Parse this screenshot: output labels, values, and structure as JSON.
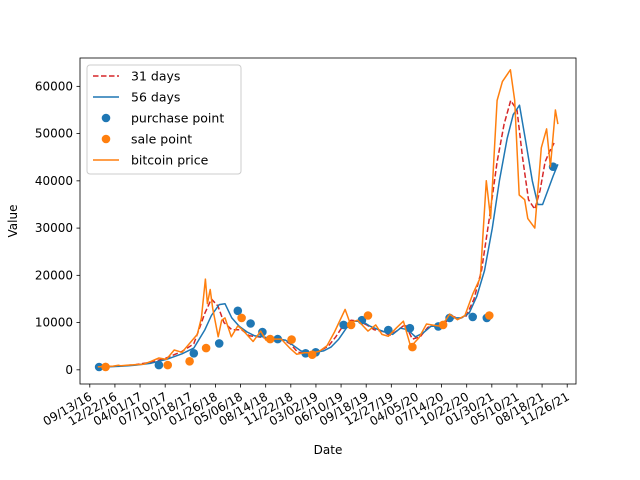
{
  "chart_data": {
    "type": "line",
    "xlabel": "Date",
    "ylabel": "Value",
    "x_axis": {
      "type": "date",
      "range": [
        "2016-08-05",
        "2021-12-31"
      ],
      "ticks": [
        "2016-09-13",
        "2016-12-22",
        "2017-04-01",
        "2017-07-10",
        "2017-10-18",
        "2018-01-26",
        "2018-05-06",
        "2018-08-14",
        "2018-11-22",
        "2019-03-02",
        "2019-06-10",
        "2019-09-18",
        "2019-12-27",
        "2020-04-05",
        "2020-07-14",
        "2020-10-22",
        "2021-01-30",
        "2021-05-10",
        "2021-08-18",
        "2021-11-26"
      ],
      "tick_labels": [
        "09/13/16",
        "12/22/16",
        "04/01/17",
        "07/10/17",
        "10/18/17",
        "01/26/18",
        "05/06/18",
        "08/14/18",
        "11/22/18",
        "03/02/19",
        "06/10/19",
        "09/18/19",
        "12/27/19",
        "04/05/20",
        "07/14/20",
        "10/22/20",
        "01/30/21",
        "05/10/21",
        "08/18/21",
        "11/26/21"
      ]
    },
    "y_axis": {
      "range": [
        -3000,
        66000
      ],
      "ticks": [
        0,
        10000,
        20000,
        30000,
        40000,
        50000,
        60000
      ],
      "tick_labels": [
        "0",
        "10000",
        "20000",
        "30000",
        "40000",
        "50000",
        "60000"
      ]
    },
    "grid": false,
    "legend_position": "top-left",
    "series": [
      {
        "name": "31 days",
        "kind": "line",
        "style": "dashed",
        "color": "#d62728",
        "points": [
          [
            "2016-11-01",
            650
          ],
          [
            "2017-01-15",
            800
          ],
          [
            "2017-03-15",
            1100
          ],
          [
            "2017-05-15",
            1600
          ],
          [
            "2017-07-15",
            2500
          ],
          [
            "2017-09-15",
            3900
          ],
          [
            "2017-11-01",
            5500
          ],
          [
            "2017-12-15",
            12000
          ],
          [
            "2018-01-10",
            15000
          ],
          [
            "2018-02-05",
            13500
          ],
          [
            "2018-03-01",
            10000
          ],
          [
            "2018-04-01",
            8500
          ],
          [
            "2018-05-10",
            8500
          ],
          [
            "2018-06-10",
            7200
          ],
          [
            "2018-07-15",
            7000
          ],
          [
            "2018-08-15",
            6700
          ],
          [
            "2018-09-15",
            6600
          ],
          [
            "2018-10-15",
            6500
          ],
          [
            "2018-11-20",
            5500
          ],
          [
            "2018-12-20",
            3700
          ],
          [
            "2019-01-20",
            3600
          ],
          [
            "2019-02-20",
            3800
          ],
          [
            "2019-03-20",
            4100
          ],
          [
            "2019-04-20",
            5000
          ],
          [
            "2019-05-20",
            7000
          ],
          [
            "2019-06-20",
            9500
          ],
          [
            "2019-07-20",
            10500
          ],
          [
            "2019-08-20",
            10300
          ],
          [
            "2019-09-20",
            9500
          ],
          [
            "2019-10-20",
            8500
          ],
          [
            "2019-11-20",
            8200
          ],
          [
            "2019-12-20",
            7300
          ],
          [
            "2020-01-20",
            8300
          ],
          [
            "2020-02-20",
            9600
          ],
          [
            "2020-03-20",
            6500
          ],
          [
            "2020-04-20",
            7000
          ],
          [
            "2020-05-20",
            9000
          ],
          [
            "2020-06-20",
            9400
          ],
          [
            "2020-07-20",
            9300
          ],
          [
            "2020-08-20",
            11500
          ],
          [
            "2020-09-20",
            10800
          ],
          [
            "2020-10-20",
            11400
          ],
          [
            "2020-11-20",
            15000
          ],
          [
            "2020-12-20",
            21000
          ],
          [
            "2021-01-20",
            32000
          ],
          [
            "2021-02-20",
            44000
          ],
          [
            "2021-03-20",
            52000
          ],
          [
            "2021-04-15",
            57000
          ],
          [
            "2021-05-10",
            55000
          ],
          [
            "2021-06-01",
            45000
          ],
          [
            "2021-06-25",
            36000
          ],
          [
            "2021-07-20",
            34000
          ],
          [
            "2021-08-10",
            38000
          ],
          [
            "2021-08-30",
            44000
          ],
          [
            "2021-09-15",
            46000
          ],
          [
            "2021-10-05",
            48000
          ]
        ]
      },
      {
        "name": "56 days",
        "kind": "line",
        "style": "solid",
        "color": "#1f77b4",
        "points": [
          [
            "2016-11-01",
            600
          ],
          [
            "2017-01-15",
            750
          ],
          [
            "2017-03-15",
            1000
          ],
          [
            "2017-05-15",
            1400
          ],
          [
            "2017-07-15",
            2200
          ],
          [
            "2017-09-15",
            3400
          ],
          [
            "2017-11-01",
            4600
          ],
          [
            "2017-12-15",
            8500
          ],
          [
            "2018-01-10",
            11500
          ],
          [
            "2018-02-10",
            13800
          ],
          [
            "2018-03-05",
            14000
          ],
          [
            "2018-04-01",
            11000
          ],
          [
            "2018-05-01",
            9200
          ],
          [
            "2018-06-01",
            8000
          ],
          [
            "2018-07-01",
            7200
          ],
          [
            "2018-08-01",
            7000
          ],
          [
            "2018-09-01",
            6700
          ],
          [
            "2018-10-01",
            6500
          ],
          [
            "2018-11-01",
            6300
          ],
          [
            "2018-12-01",
            5200
          ],
          [
            "2019-01-01",
            4000
          ],
          [
            "2019-02-01",
            3600
          ],
          [
            "2019-03-01",
            3700
          ],
          [
            "2019-04-01",
            4000
          ],
          [
            "2019-05-01",
            4800
          ],
          [
            "2019-06-01",
            6500
          ],
          [
            "2019-07-01",
            8800
          ],
          [
            "2019-08-01",
            10300
          ],
          [
            "2019-09-01",
            10300
          ],
          [
            "2019-10-01",
            9300
          ],
          [
            "2019-11-01",
            8600
          ],
          [
            "2019-12-01",
            8000
          ],
          [
            "2020-01-01",
            7500
          ],
          [
            "2020-02-01",
            8800
          ],
          [
            "2020-03-01",
            8500
          ],
          [
            "2020-04-01",
            7000
          ],
          [
            "2020-05-01",
            7800
          ],
          [
            "2020-06-01",
            9200
          ],
          [
            "2020-07-01",
            9300
          ],
          [
            "2020-08-01",
            10500
          ],
          [
            "2020-09-01",
            11000
          ],
          [
            "2020-10-01",
            11000
          ],
          [
            "2020-11-01",
            12000
          ],
          [
            "2020-12-01",
            15500
          ],
          [
            "2021-01-01",
            21000
          ],
          [
            "2021-02-01",
            30000
          ],
          [
            "2021-03-01",
            40000
          ],
          [
            "2021-04-01",
            49000
          ],
          [
            "2021-04-25",
            54000
          ],
          [
            "2021-05-20",
            56000
          ],
          [
            "2021-06-15",
            48000
          ],
          [
            "2021-07-10",
            40000
          ],
          [
            "2021-08-01",
            35000
          ],
          [
            "2021-08-20",
            35000
          ],
          [
            "2021-09-10",
            38000
          ],
          [
            "2021-10-01",
            41000
          ],
          [
            "2021-10-20",
            43500
          ]
        ]
      },
      {
        "name": "bitcoin price",
        "kind": "line",
        "style": "solid",
        "color": "#ff7f0e",
        "points": [
          [
            "2016-10-15",
            620
          ],
          [
            "2016-11-15",
            720
          ],
          [
            "2016-12-15",
            780
          ],
          [
            "2017-01-05",
            980
          ],
          [
            "2017-01-15",
            850
          ],
          [
            "2017-02-15",
            1000
          ],
          [
            "2017-03-15",
            1100
          ],
          [
            "2017-04-15",
            1200
          ],
          [
            "2017-05-15",
            1800
          ],
          [
            "2017-06-15",
            2500
          ],
          [
            "2017-07-15",
            2200
          ],
          [
            "2017-08-15",
            4200
          ],
          [
            "2017-09-15",
            3700
          ],
          [
            "2017-10-15",
            5600
          ],
          [
            "2017-11-15",
            7500
          ],
          [
            "2017-12-01",
            11000
          ],
          [
            "2017-12-17",
            19200
          ],
          [
            "2017-12-25",
            14000
          ],
          [
            "2018-01-05",
            17000
          ],
          [
            "2018-01-15",
            13000
          ],
          [
            "2018-02-06",
            7000
          ],
          [
            "2018-02-20",
            10500
          ],
          [
            "2018-03-05",
            11000
          ],
          [
            "2018-03-30",
            7000
          ],
          [
            "2018-04-25",
            9300
          ],
          [
            "2018-05-15",
            8400
          ],
          [
            "2018-06-25",
            6000
          ],
          [
            "2018-07-25",
            8200
          ],
          [
            "2018-08-15",
            6300
          ],
          [
            "2018-09-15",
            6500
          ],
          [
            "2018-10-15",
            6500
          ],
          [
            "2018-11-20",
            4500
          ],
          [
            "2018-12-15",
            3300
          ],
          [
            "2019-01-15",
            3600
          ],
          [
            "2019-02-15",
            3600
          ],
          [
            "2019-03-15",
            3900
          ],
          [
            "2019-04-15",
            5100
          ],
          [
            "2019-05-15",
            8000
          ],
          [
            "2019-06-26",
            12800
          ],
          [
            "2019-07-15",
            10000
          ],
          [
            "2019-08-15",
            10500
          ],
          [
            "2019-09-25",
            8200
          ],
          [
            "2019-10-26",
            9500
          ],
          [
            "2019-11-20",
            7500
          ],
          [
            "2019-12-15",
            7100
          ],
          [
            "2020-01-15",
            8800
          ],
          [
            "2020-02-13",
            10300
          ],
          [
            "2020-03-13",
            4900
          ],
          [
            "2020-04-15",
            6800
          ],
          [
            "2020-05-15",
            9700
          ],
          [
            "2020-06-15",
            9400
          ],
          [
            "2020-07-15",
            9200
          ],
          [
            "2020-08-15",
            11800
          ],
          [
            "2020-09-15",
            10600
          ],
          [
            "2020-10-15",
            11500
          ],
          [
            "2020-11-15",
            16000
          ],
          [
            "2020-12-15",
            19500
          ],
          [
            "2021-01-08",
            40000
          ],
          [
            "2021-01-25",
            32000
          ],
          [
            "2021-02-20",
            57000
          ],
          [
            "2021-03-13",
            61000
          ],
          [
            "2021-04-14",
            63500
          ],
          [
            "2021-05-01",
            57000
          ],
          [
            "2021-05-19",
            37000
          ],
          [
            "2021-06-10",
            36000
          ],
          [
            "2021-06-22",
            32000
          ],
          [
            "2021-07-20",
            30000
          ],
          [
            "2021-08-15",
            47000
          ],
          [
            "2021-09-05",
            51000
          ],
          [
            "2021-09-20",
            43000
          ],
          [
            "2021-10-10",
            55000
          ],
          [
            "2021-10-20",
            52000
          ]
        ]
      },
      {
        "name": "purchase point",
        "kind": "scatter",
        "color": "#1f77b4",
        "points": [
          [
            "2016-10-20",
            600
          ],
          [
            "2017-06-15",
            1000
          ],
          [
            "2017-11-01",
            3500
          ],
          [
            "2018-02-10",
            5600
          ],
          [
            "2018-04-25",
            12500
          ],
          [
            "2018-06-15",
            9800
          ],
          [
            "2018-08-01",
            8000
          ],
          [
            "2018-10-01",
            6500
          ],
          [
            "2019-01-20",
            3500
          ],
          [
            "2019-03-01",
            3700
          ],
          [
            "2019-06-20",
            9500
          ],
          [
            "2019-09-01",
            10500
          ],
          [
            "2019-12-15",
            8400
          ],
          [
            "2020-03-10",
            8800
          ],
          [
            "2020-07-01",
            9200
          ],
          [
            "2020-08-15",
            11000
          ],
          [
            "2020-11-15",
            11200
          ],
          [
            "2021-01-10",
            11000
          ],
          [
            "2021-10-01",
            43000
          ]
        ]
      },
      {
        "name": "sale point",
        "kind": "scatter",
        "color": "#ff7f0e",
        "points": [
          [
            "2016-11-15",
            620
          ],
          [
            "2017-07-20",
            1000
          ],
          [
            "2017-10-15",
            1800
          ],
          [
            "2017-12-20",
            4600
          ],
          [
            "2018-05-10",
            11000
          ],
          [
            "2018-09-01",
            6500
          ],
          [
            "2018-11-25",
            6400
          ],
          [
            "2019-02-15",
            3200
          ],
          [
            "2019-07-20",
            9500
          ],
          [
            "2019-09-25",
            11500
          ],
          [
            "2020-03-20",
            4800
          ],
          [
            "2020-07-20",
            9500
          ],
          [
            "2021-01-20",
            11500
          ]
        ]
      }
    ]
  }
}
